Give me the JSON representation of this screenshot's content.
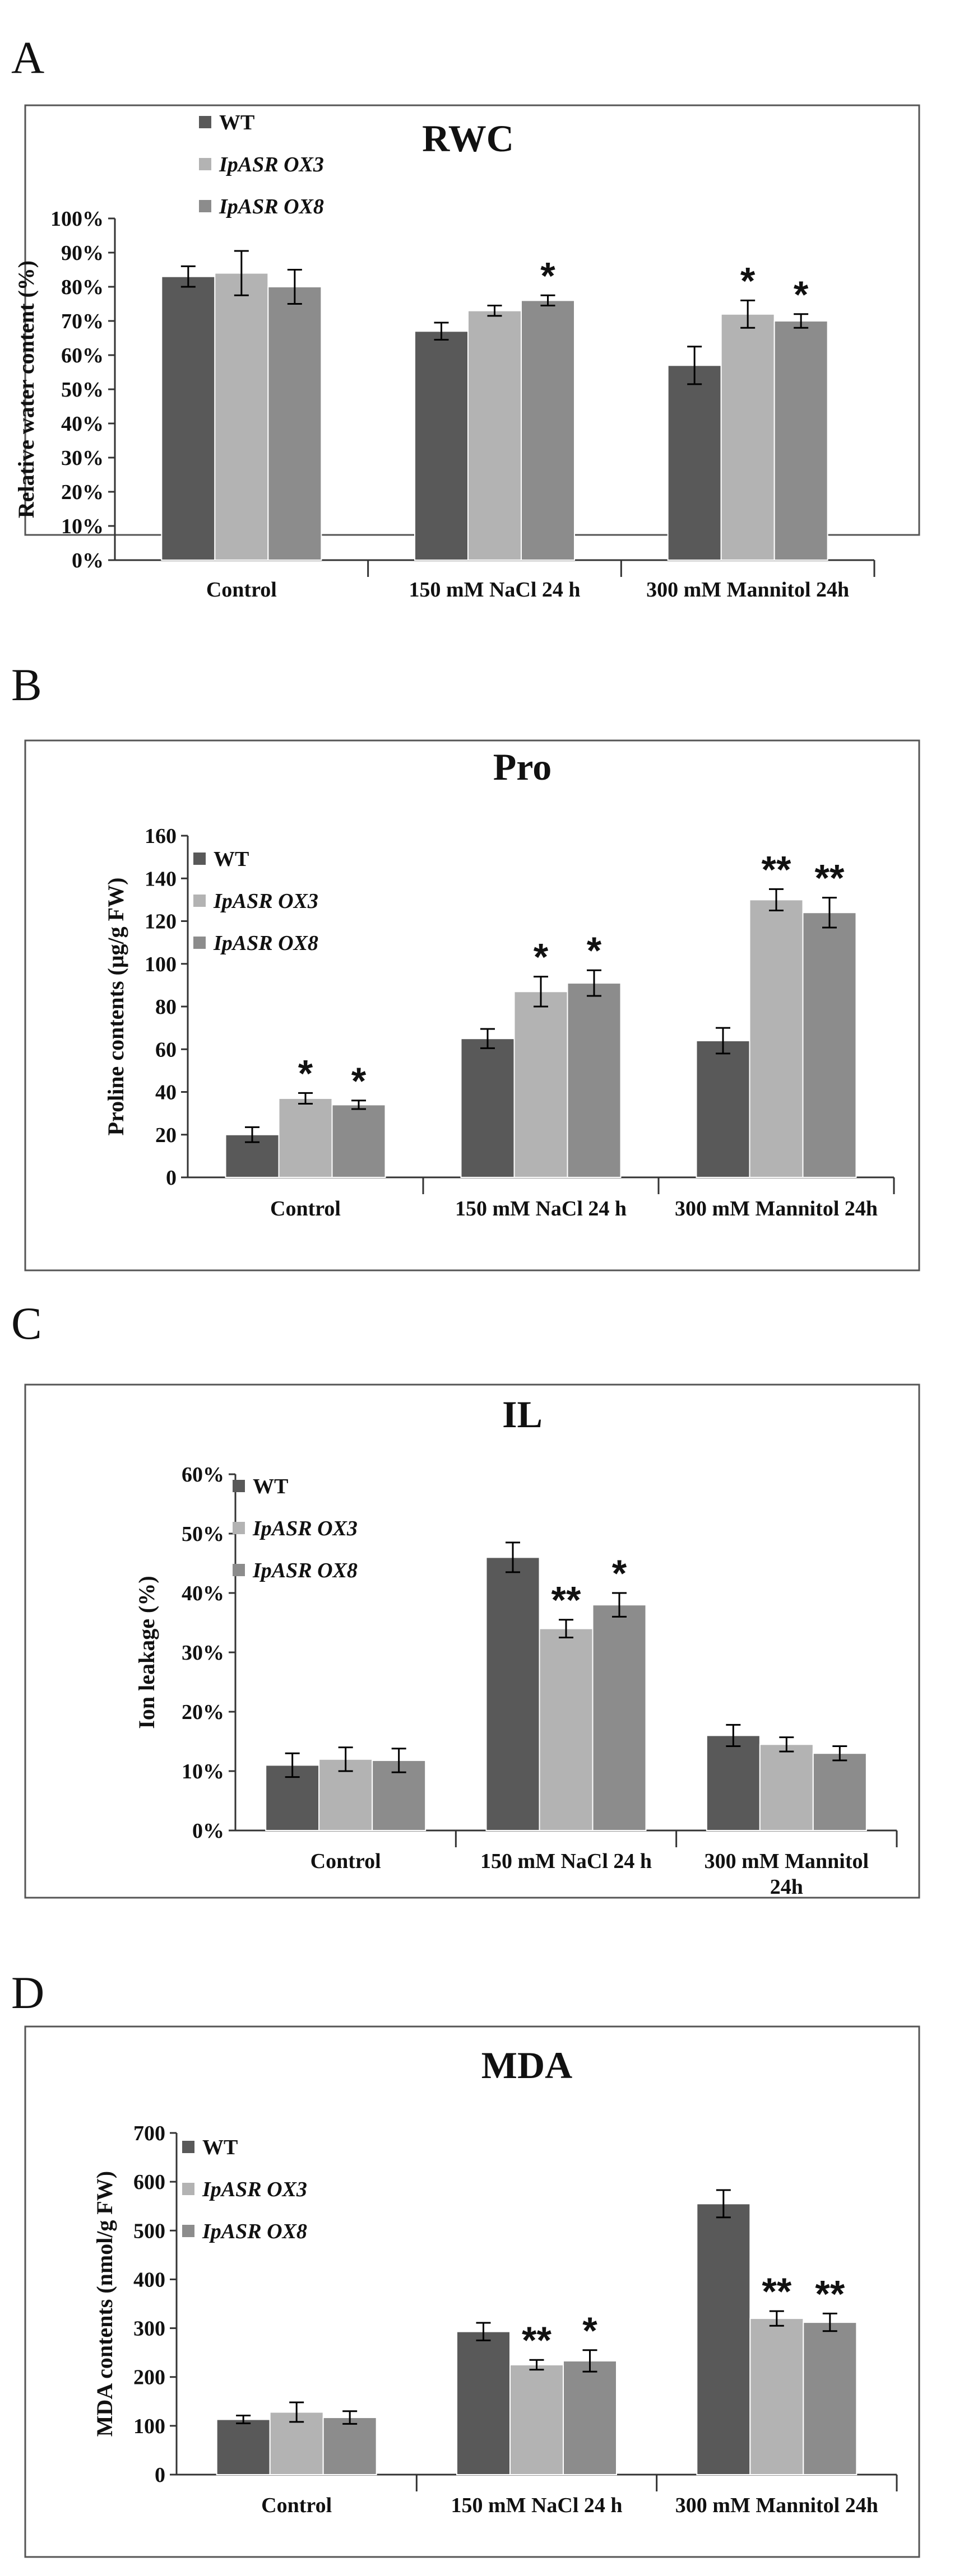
{
  "figure": {
    "colors": {
      "panel_border": "#555555",
      "axis": "#333333",
      "text": "#111111",
      "series": [
        "#595959",
        "#b3b3b3",
        "#8c8c8c"
      ]
    }
  },
  "chart_data": [
    {
      "id": "A",
      "type": "bar",
      "panel_letter": "A",
      "title": "RWC",
      "ylabel": "Relative water content (%)",
      "xlabel": "",
      "y_format": "percent",
      "ylim": [
        0,
        1.0
      ],
      "ystep": 0.1,
      "categories": [
        "Control",
        "150 mM NaCl 24 h",
        "300 mM Mannitol 24h"
      ],
      "legend": [
        "WT",
        "IpASR OX3",
        "IpASR OX8"
      ],
      "series": [
        {
          "name": "WT",
          "values": [
            0.83,
            0.67,
            0.57
          ],
          "errors": [
            0.03,
            0.025,
            0.055
          ],
          "sig": [
            "",
            "",
            ""
          ]
        },
        {
          "name": "IpASR OX3",
          "values": [
            0.84,
            0.73,
            0.72
          ],
          "errors": [
            0.065,
            0.015,
            0.04
          ],
          "sig": [
            "",
            "",
            "*"
          ]
        },
        {
          "name": "IpASR OX8",
          "values": [
            0.8,
            0.76,
            0.7
          ],
          "errors": [
            0.05,
            0.015,
            0.02
          ],
          "sig": [
            "",
            "*",
            "*"
          ]
        }
      ]
    },
    {
      "id": "B",
      "type": "bar",
      "panel_letter": "B",
      "title": "Pro",
      "ylabel": "Proline contents  (μg/g FW)",
      "xlabel": "",
      "y_format": "number",
      "ylim": [
        0,
        160
      ],
      "ystep": 20,
      "categories": [
        "Control",
        "150 mM NaCl 24 h",
        "300 mM Mannitol 24h"
      ],
      "legend": [
        "WT",
        "IpASR OX3",
        "IpASR OX8"
      ],
      "series": [
        {
          "name": "WT",
          "values": [
            20,
            65,
            64
          ],
          "errors": [
            3.5,
            4.5,
            6
          ],
          "sig": [
            "",
            "",
            ""
          ]
        },
        {
          "name": "IpASR OX3",
          "values": [
            37,
            87,
            130
          ],
          "errors": [
            2.5,
            7,
            5
          ],
          "sig": [
            "*",
            "*",
            "**"
          ]
        },
        {
          "name": "IpASR OX8",
          "values": [
            34,
            91,
            124
          ],
          "errors": [
            2,
            6,
            7
          ],
          "sig": [
            "*",
            "*",
            "**"
          ]
        }
      ]
    },
    {
      "id": "C",
      "type": "bar",
      "panel_letter": "C",
      "title": "IL",
      "ylabel": "Ion leakage (%)",
      "xlabel": "",
      "y_format": "percent",
      "ylim": [
        0,
        0.6
      ],
      "ystep": 0.1,
      "categories": [
        "Control",
        "150 mM NaCl 24 h",
        "300 mM Mannitol 24h"
      ],
      "legend": [
        "WT",
        "IpASR OX3",
        "IpASR OX8"
      ],
      "series": [
        {
          "name": "WT",
          "values": [
            0.11,
            0.46,
            0.16
          ],
          "errors": [
            0.02,
            0.025,
            0.018
          ],
          "sig": [
            "",
            "",
            ""
          ]
        },
        {
          "name": "IpASR OX3",
          "values": [
            0.12,
            0.34,
            0.145
          ],
          "errors": [
            0.02,
            0.015,
            0.012
          ],
          "sig": [
            "",
            "**",
            ""
          ]
        },
        {
          "name": "IpASR OX8",
          "values": [
            0.118,
            0.38,
            0.13
          ],
          "errors": [
            0.02,
            0.02,
            0.012
          ],
          "sig": [
            "",
            "*",
            ""
          ]
        }
      ]
    },
    {
      "id": "D",
      "type": "bar",
      "panel_letter": "D",
      "title": "MDA",
      "ylabel": "MDA contents (nmol/g FW)",
      "xlabel": "",
      "y_format": "number",
      "ylim": [
        0,
        700
      ],
      "ystep": 100,
      "categories": [
        "Control",
        "150 mM NaCl 24 h",
        "300 mM Mannitol 24h"
      ],
      "legend": [
        "WT",
        "IpASR OX3",
        "IpASR OX8"
      ],
      "series": [
        {
          "name": "WT",
          "values": [
            113,
            293,
            555
          ],
          "errors": [
            8,
            18,
            28
          ],
          "sig": [
            "",
            "",
            ""
          ]
        },
        {
          "name": "IpASR OX3",
          "values": [
            128,
            225,
            320
          ],
          "errors": [
            20,
            10,
            15
          ],
          "sig": [
            "",
            "**",
            "**"
          ]
        },
        {
          "name": "IpASR OX8",
          "values": [
            117,
            233,
            312
          ],
          "errors": [
            13,
            22,
            18
          ],
          "sig": [
            "",
            "*",
            "**"
          ]
        }
      ]
    }
  ]
}
